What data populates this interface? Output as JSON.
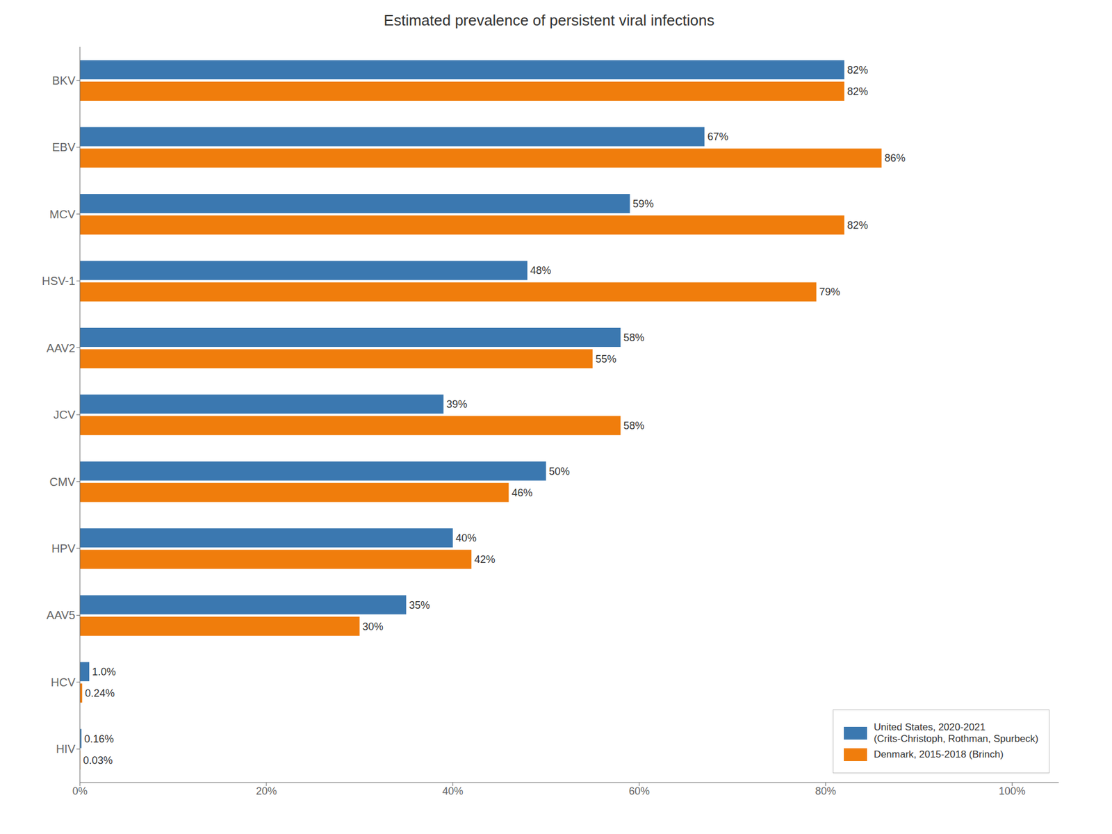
{
  "chart_data": {
    "type": "bar",
    "orientation": "horizontal",
    "title": "Estimated prevalence of persistent viral infections",
    "categories": [
      "BKV",
      "EBV",
      "MCV",
      "HSV-1",
      "AAV2",
      "JCV",
      "CMV",
      "HPV",
      "AAV5",
      "HCV",
      "HIV"
    ],
    "series": [
      {
        "name": "United States, 2020-2021\n(Crits-Christoph, Rothman, Spurbeck)",
        "color": "#3b78b0",
        "values": [
          82,
          67,
          59,
          48,
          58,
          39,
          50,
          40,
          35,
          1.0,
          0.16
        ],
        "value_labels": [
          "82%",
          "67%",
          "59%",
          "48%",
          "58%",
          "39%",
          "50%",
          "40%",
          "35%",
          "1.0%",
          "0.16%"
        ]
      },
      {
        "name": "Denmark, 2015-2018 (Brinch)",
        "color": "#f07d0c",
        "values": [
          82,
          86,
          82,
          79,
          55,
          58,
          46,
          42,
          30,
          0.24,
          0.03
        ],
        "value_labels": [
          "82%",
          "86%",
          "82%",
          "79%",
          "55%",
          "58%",
          "46%",
          "42%",
          "30%",
          "0.24%",
          "0.03%"
        ]
      }
    ],
    "xlim": [
      0,
      105
    ],
    "xticks": [
      {
        "value": 0,
        "label": "0%"
      },
      {
        "value": 20,
        "label": "20%"
      },
      {
        "value": 40,
        "label": "40%"
      },
      {
        "value": 60,
        "label": "60%"
      },
      {
        "value": 80,
        "label": "80%"
      },
      {
        "value": 100,
        "label": "100%"
      }
    ],
    "data_labels": true,
    "legend": "lower right",
    "grid": false
  }
}
